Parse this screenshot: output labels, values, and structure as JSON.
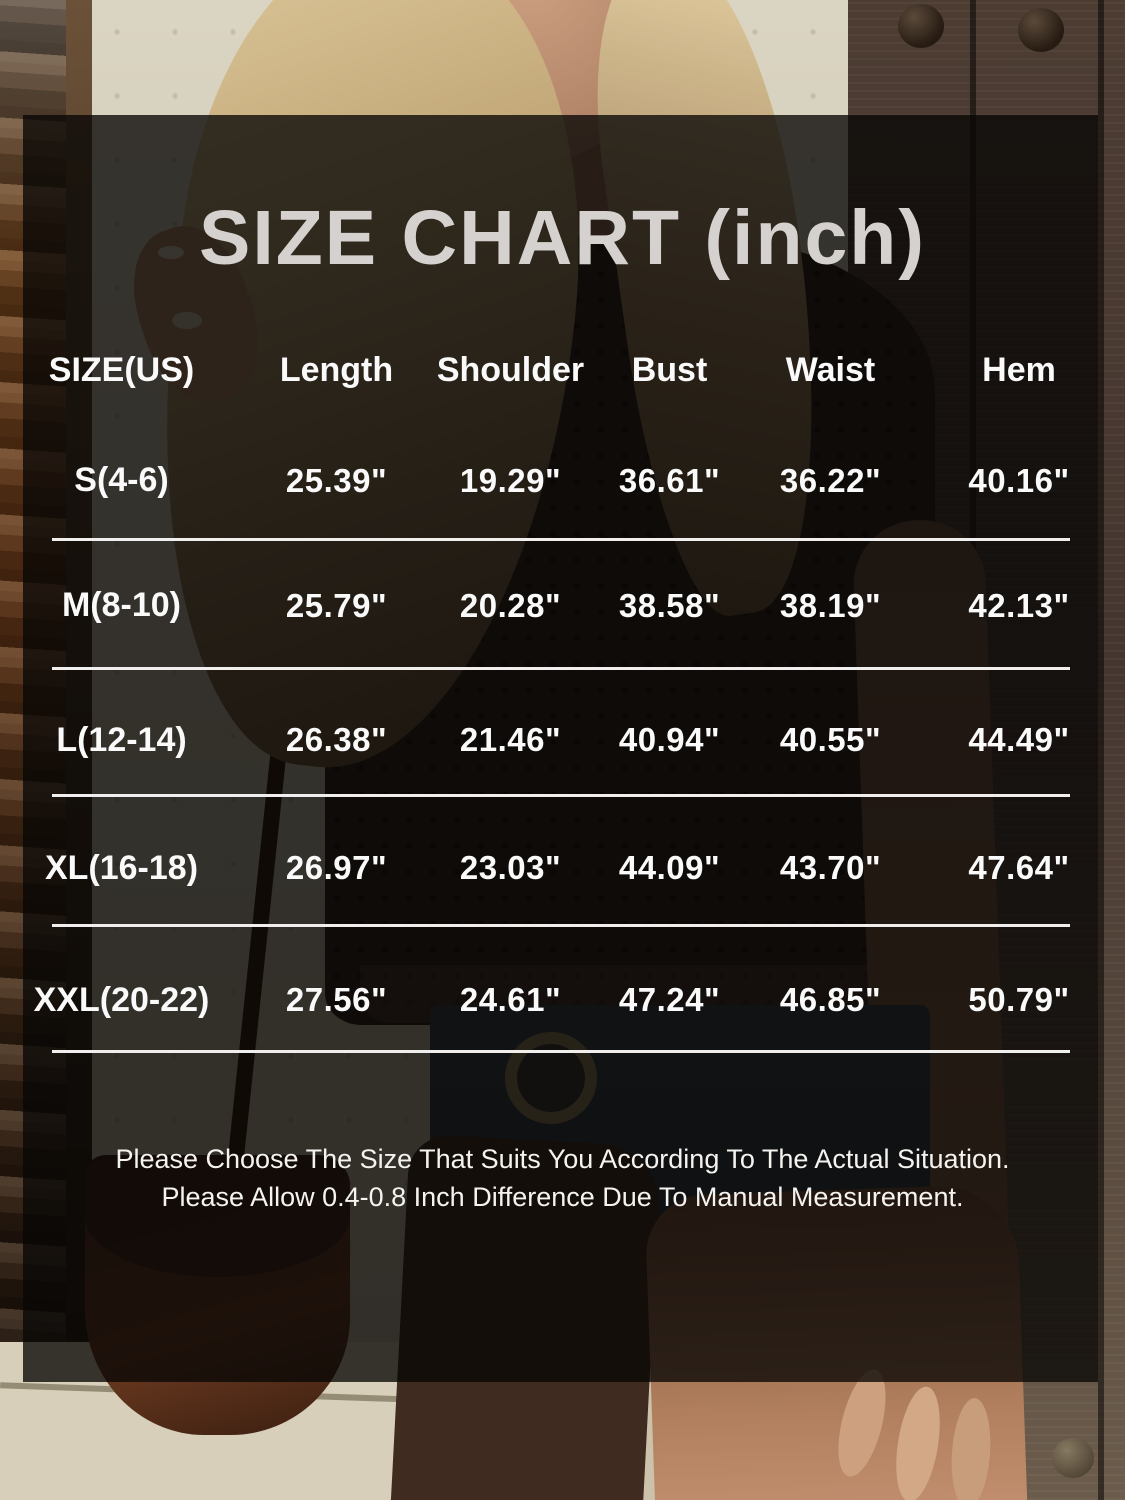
{
  "title": "SIZE CHART (inch)",
  "table": {
    "headers": [
      "SIZE(US)",
      "Length",
      "Shoulder",
      "Bust",
      "Waist",
      "Hem"
    ],
    "rows": [
      {
        "size": "S(4-6)",
        "values": [
          "25.39\"",
          "19.29\"",
          "36.61\"",
          "36.22\"",
          "40.16\""
        ]
      },
      {
        "size": "M(8-10)",
        "values": [
          "25.79\"",
          "20.28\"",
          "38.58\"",
          "38.19\"",
          "42.13\""
        ]
      },
      {
        "size": "L(12-14)",
        "values": [
          "26.38\"",
          "21.46\"",
          "40.94\"",
          "40.55\"",
          "44.49\""
        ]
      },
      {
        "size": "XL(16-18)",
        "values": [
          "26.97\"",
          "23.03\"",
          "44.09\"",
          "43.70\"",
          "47.64\""
        ]
      },
      {
        "size": "XXL(20-22)",
        "values": [
          "27.56\"",
          "24.61\"",
          "47.24\"",
          "46.85\"",
          "50.79\""
        ]
      }
    ]
  },
  "footer": {
    "line1": "Please Choose The Size That Suits You According To The Actual Situation.",
    "line2": "Please Allow 0.4-0.8 Inch Difference Due To Manual Measurement."
  },
  "colors": {
    "title_text": "#d4d1ce",
    "table_text": "#fafafa",
    "divider": "#f0efee",
    "overlay": "rgba(8,6,5,0.78)"
  },
  "chart_data": {
    "type": "table",
    "title": "SIZE CHART (inch)",
    "units": "inch",
    "columns": [
      "SIZE(US)",
      "Length",
      "Shoulder",
      "Bust",
      "Waist",
      "Hem"
    ],
    "rows": [
      [
        "S(4-6)",
        25.39,
        19.29,
        36.61,
        36.22,
        40.16
      ],
      [
        "M(8-10)",
        25.79,
        20.28,
        38.58,
        38.19,
        42.13
      ],
      [
        "L(12-14)",
        26.38,
        21.46,
        40.94,
        40.55,
        44.49
      ],
      [
        "XL(16-18)",
        26.97,
        23.03,
        44.09,
        43.7,
        47.64
      ],
      [
        "XXL(20-22)",
        27.56,
        24.61,
        47.24,
        46.85,
        50.79
      ]
    ]
  }
}
